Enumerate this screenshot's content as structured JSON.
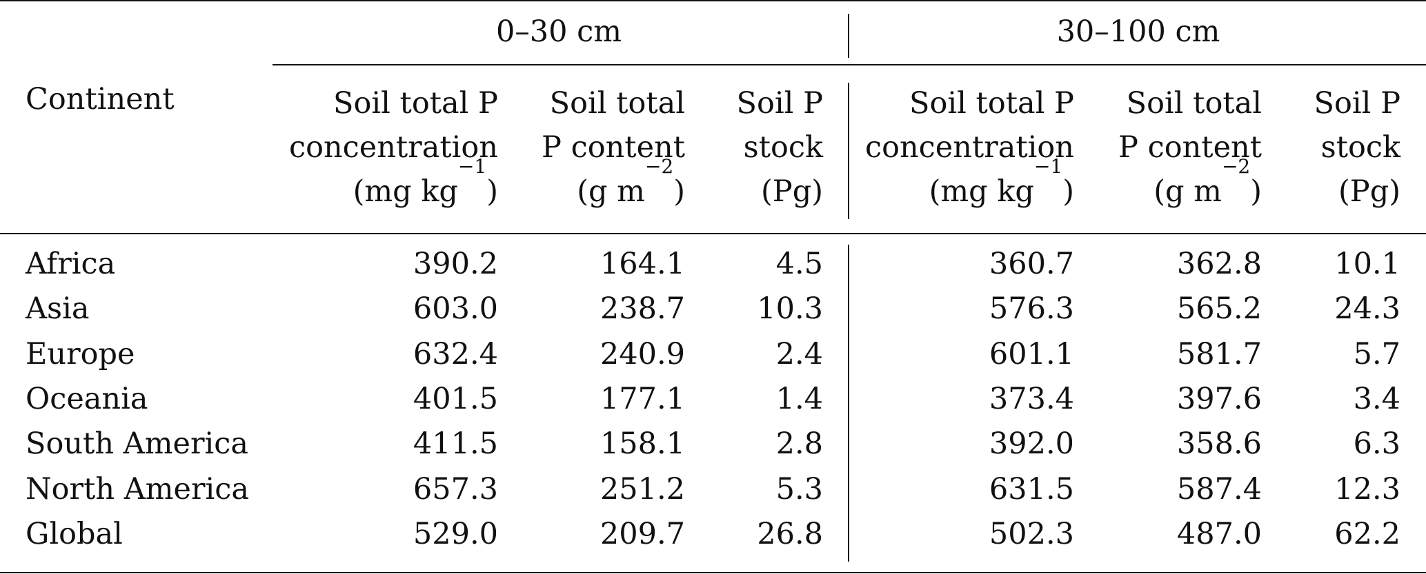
{
  "table": {
    "groups": [
      {
        "label": "0–30 cm"
      },
      {
        "label": "30–100 cm"
      }
    ],
    "row_header_label": "Continent",
    "column_headers": [
      {
        "line1": "Soil total P",
        "line2": "concentration",
        "line3_pre": "(mg kg",
        "line3_sup": "−1",
        "line3_post": ")"
      },
      {
        "line1": "Soil total",
        "line2": "P content",
        "line3_pre": "(g m",
        "line3_sup": "−2",
        "line3_post": ")"
      },
      {
        "line1": "Soil P",
        "line2": "stock",
        "line3_pre": "(Pg)",
        "line3_sup": "",
        "line3_post": ""
      },
      {
        "line1": "Soil total P",
        "line2": "concentration",
        "line3_pre": "(mg kg",
        "line3_sup": "−1",
        "line3_post": ")"
      },
      {
        "line1": "Soil total",
        "line2": "P content",
        "line3_pre": "(g m",
        "line3_sup": "−2",
        "line3_post": ")"
      },
      {
        "line1": "Soil P",
        "line2": "stock",
        "line3_pre": "(Pg)",
        "line3_sup": "",
        "line3_post": ""
      }
    ],
    "rows": [
      {
        "continent": "Africa",
        "values": [
          "390.2",
          "164.1",
          "4.5",
          "360.7",
          "362.8",
          "10.1"
        ]
      },
      {
        "continent": "Asia",
        "values": [
          "603.0",
          "238.7",
          "10.3",
          "576.3",
          "565.2",
          "24.3"
        ]
      },
      {
        "continent": "Europe",
        "values": [
          "632.4",
          "240.9",
          "2.4",
          "601.1",
          "581.7",
          "5.7"
        ]
      },
      {
        "continent": "Oceania",
        "values": [
          "401.5",
          "177.1",
          "1.4",
          "373.4",
          "397.6",
          "3.4"
        ]
      },
      {
        "continent": "South America",
        "values": [
          "411.5",
          "158.1",
          "2.8",
          "392.0",
          "358.6",
          "6.3"
        ]
      },
      {
        "continent": "North America",
        "values": [
          "657.3",
          "251.2",
          "5.3",
          "631.5",
          "587.4",
          "12.3"
        ]
      },
      {
        "continent": "Global",
        "values": [
          "529.0",
          "209.7",
          "26.8",
          "502.3",
          "487.0",
          "62.2"
        ]
      }
    ]
  }
}
